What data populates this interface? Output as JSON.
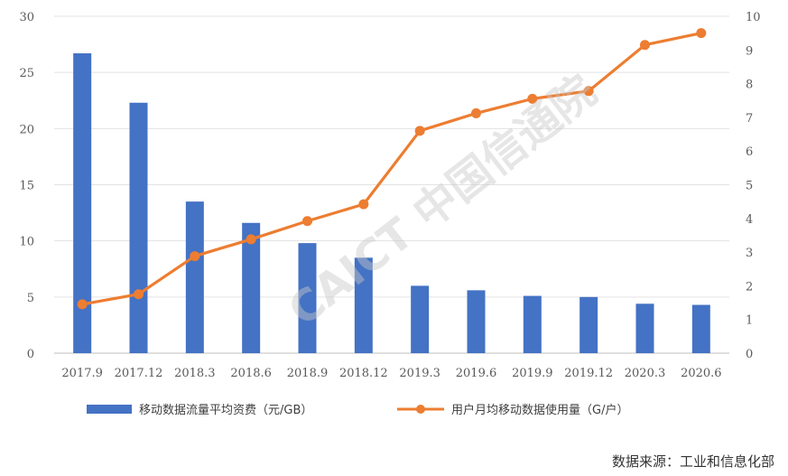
{
  "chart_data": {
    "type": "bar+line",
    "categories": [
      "2017.9",
      "2017.12",
      "2018.3",
      "2018.6",
      "2018.9",
      "2018.12",
      "2019.3",
      "2019.6",
      "2019.9",
      "2019.12",
      "2020.3",
      "2020.6"
    ],
    "series": [
      {
        "name": "移动数据流量平均资费（元/GB）",
        "type": "bar",
        "axis": "left",
        "color": "#4472C4",
        "values": [
          26.7,
          22.3,
          13.5,
          11.6,
          9.8,
          8.5,
          6.0,
          5.6,
          5.1,
          5.0,
          4.4,
          4.3
        ]
      },
      {
        "name": "用户月均移动数据使用量（G/户）",
        "type": "line",
        "axis": "right",
        "color": "#ED7D31",
        "values": [
          1.45,
          1.75,
          2.88,
          3.38,
          3.92,
          4.42,
          6.6,
          7.12,
          7.55,
          7.78,
          9.15,
          9.5
        ]
      }
    ],
    "y_left": {
      "ylim": [
        0,
        30
      ],
      "ticks": [
        0,
        5,
        10,
        15,
        20,
        25,
        30
      ]
    },
    "y_right": {
      "ylim": [
        0,
        10
      ],
      "ticks": [
        0,
        1,
        2,
        3,
        4,
        5,
        6,
        7,
        8,
        9,
        10
      ]
    },
    "grid": true,
    "legend_position": "bottom",
    "source": "数据来源：工业和信息化部",
    "watermark": "CAICT 中国信通院"
  }
}
